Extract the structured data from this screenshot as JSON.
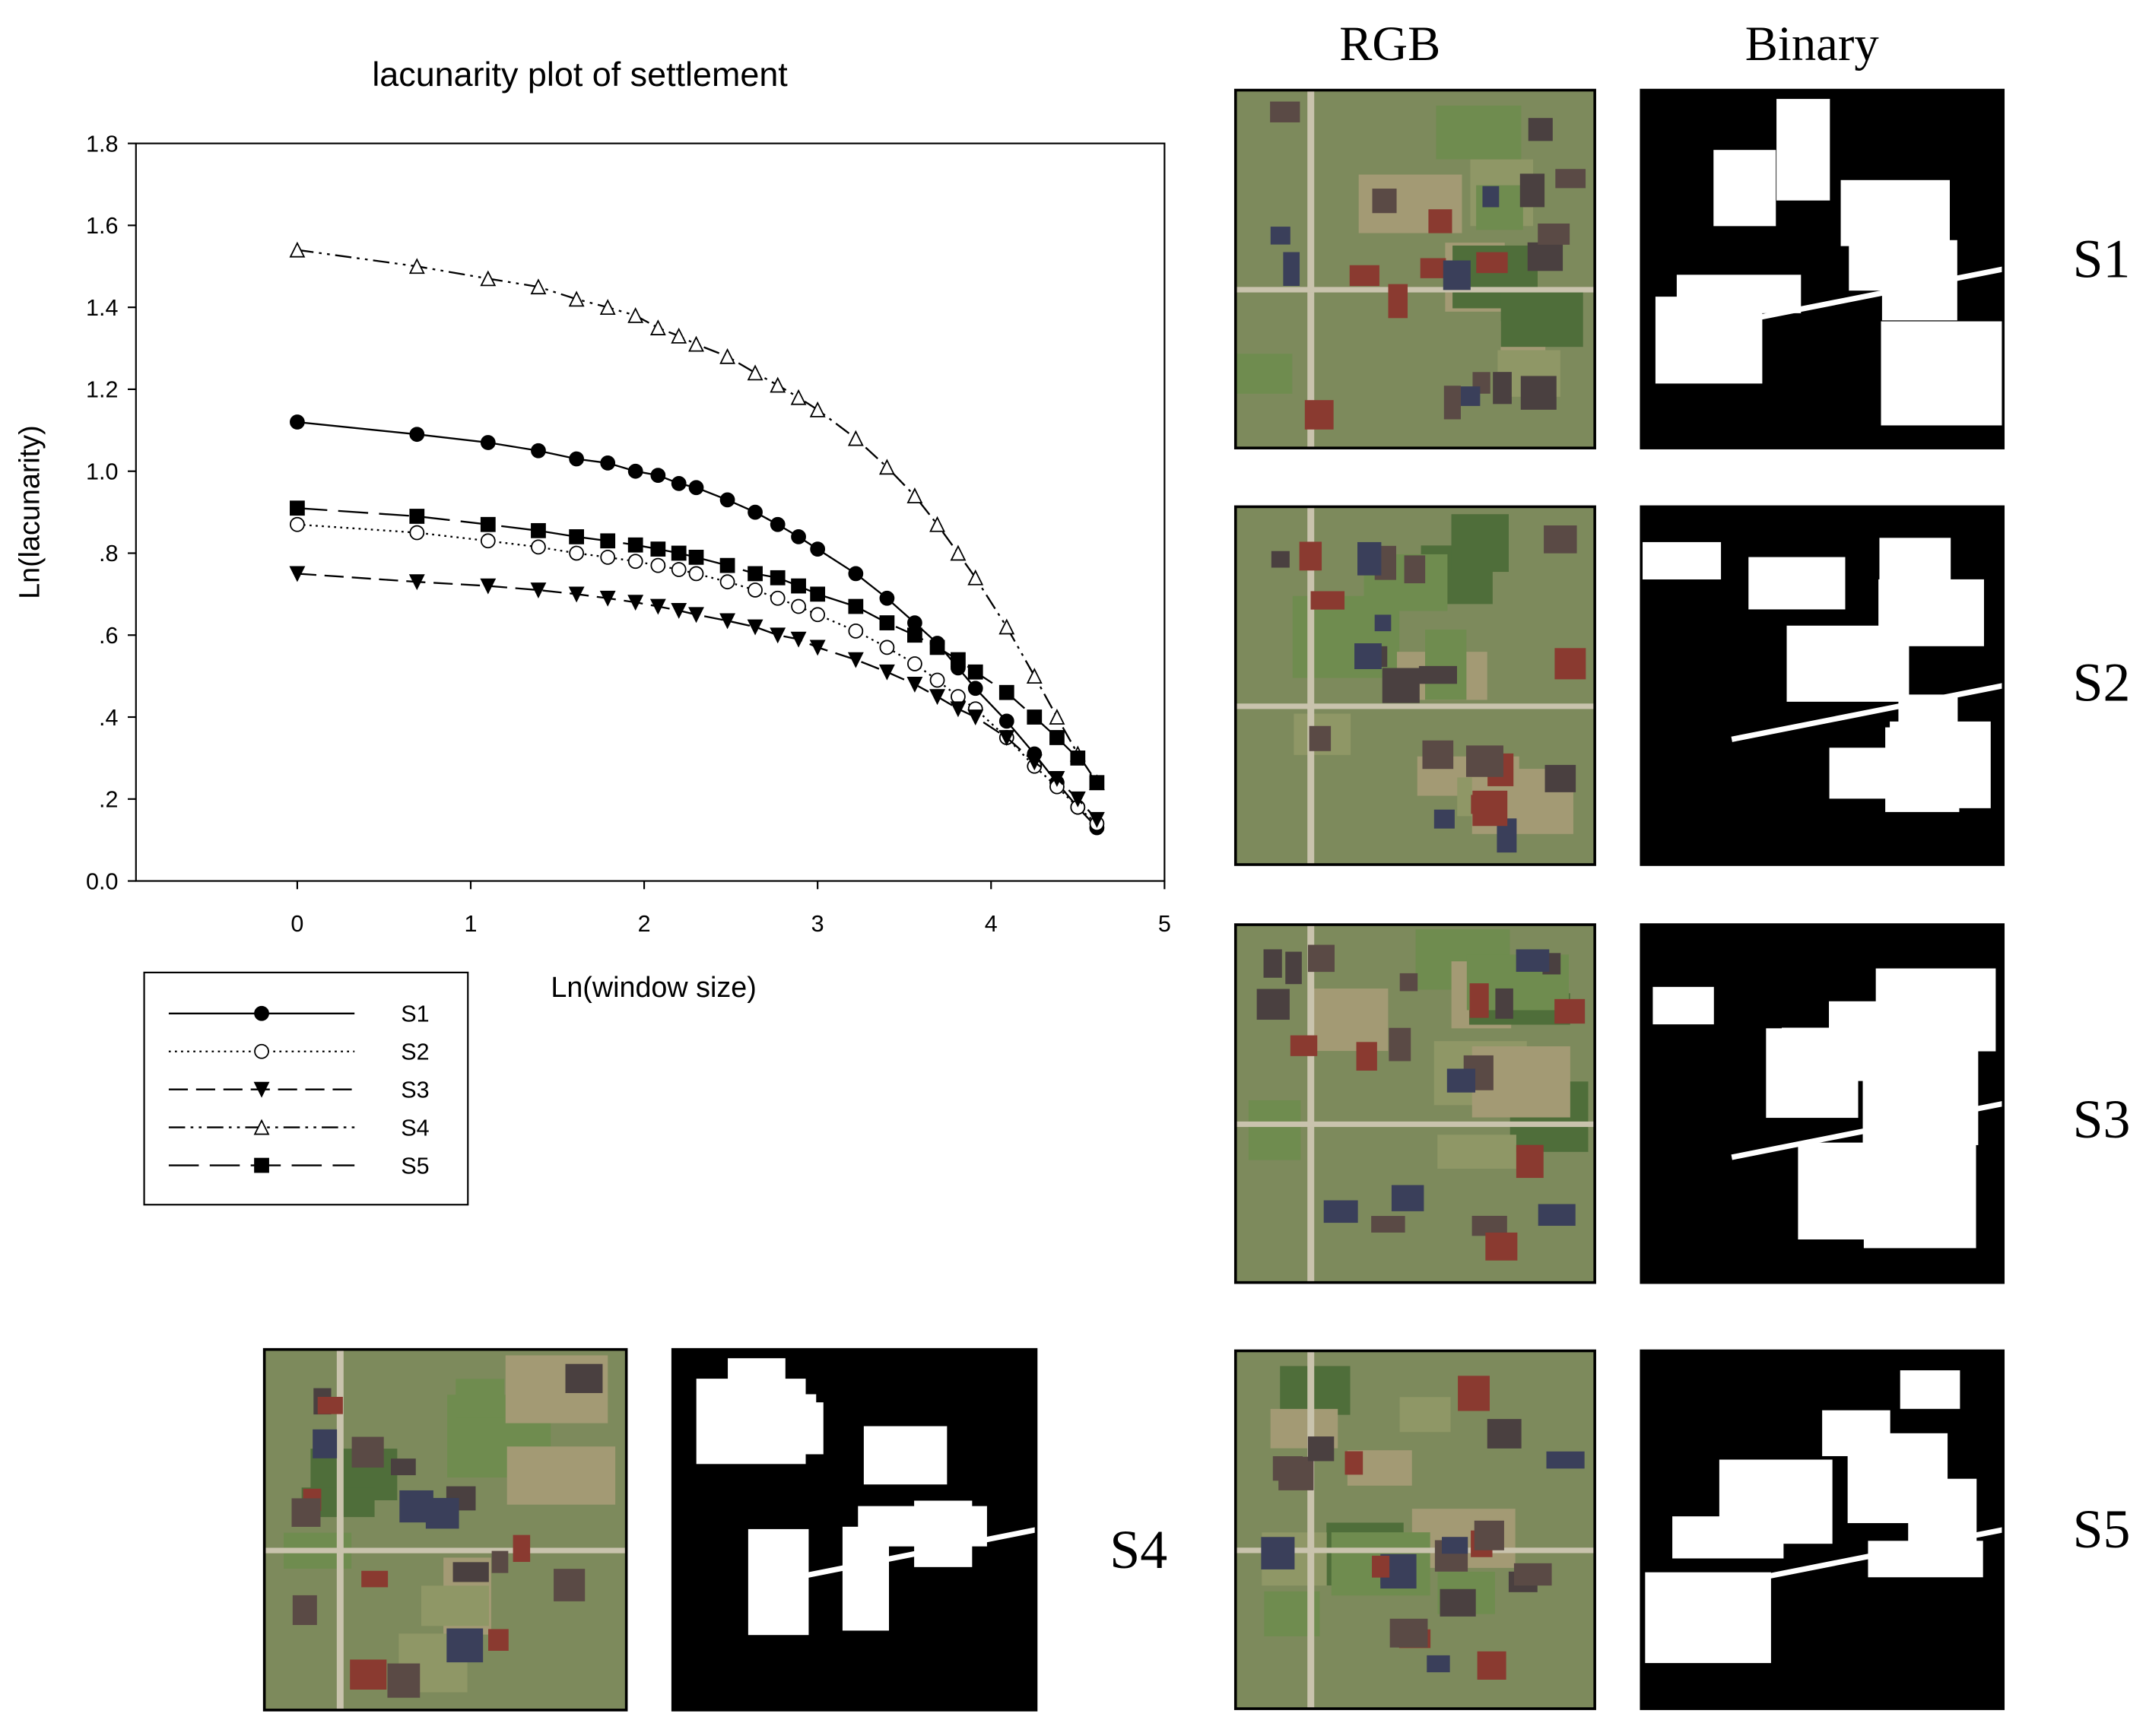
{
  "chart_data": {
    "type": "line",
    "title": "lacunarity plot of settlement",
    "x_label": "Ln(window size)",
    "y_label": "Ln(lacunarity)",
    "x": [
      0,
      0.69,
      1.1,
      1.39,
      1.61,
      1.79,
      1.95,
      2.08,
      2.2,
      2.3,
      2.48,
      2.64,
      2.77,
      2.89,
      3.0,
      3.22,
      3.4,
      3.56,
      3.69,
      3.81,
      3.91,
      4.09,
      4.25,
      4.38,
      4.5,
      4.61
    ],
    "series": [
      {
        "name": "S1",
        "color": "#000000",
        "line_style": "solid",
        "marker": "circle-filled",
        "values": [
          1.12,
          1.09,
          1.07,
          1.05,
          1.03,
          1.02,
          1.0,
          0.99,
          0.97,
          0.96,
          0.93,
          0.9,
          0.87,
          0.84,
          0.81,
          0.75,
          0.69,
          0.63,
          0.58,
          0.52,
          0.47,
          0.39,
          0.31,
          0.24,
          0.18,
          0.13
        ]
      },
      {
        "name": "S2",
        "color": "#000000",
        "line_style": "dotted",
        "marker": "circle-open",
        "values": [
          0.87,
          0.85,
          0.83,
          0.815,
          0.8,
          0.79,
          0.78,
          0.77,
          0.76,
          0.75,
          0.73,
          0.71,
          0.69,
          0.67,
          0.65,
          0.61,
          0.57,
          0.53,
          0.49,
          0.45,
          0.42,
          0.35,
          0.28,
          0.23,
          0.18,
          0.14
        ]
      },
      {
        "name": "S3",
        "color": "#000000",
        "line_style": "dashed",
        "marker": "triangle-down-filled",
        "values": [
          0.75,
          0.73,
          0.72,
          0.71,
          0.7,
          0.69,
          0.68,
          0.67,
          0.66,
          0.65,
          0.635,
          0.62,
          0.6,
          0.59,
          0.57,
          0.54,
          0.51,
          0.48,
          0.45,
          0.42,
          0.4,
          0.35,
          0.29,
          0.25,
          0.2,
          0.15
        ]
      },
      {
        "name": "S4",
        "color": "#000000",
        "line_style": "dash-dot-dot",
        "marker": "triangle-up-open",
        "values": [
          1.54,
          1.5,
          1.47,
          1.45,
          1.42,
          1.4,
          1.38,
          1.35,
          1.33,
          1.31,
          1.28,
          1.24,
          1.21,
          1.18,
          1.15,
          1.08,
          1.01,
          0.94,
          0.87,
          0.8,
          0.74,
          0.62,
          0.5,
          0.4,
          0.31,
          0.24
        ]
      },
      {
        "name": "S5",
        "color": "#000000",
        "line_style": "long-dash",
        "marker": "square-filled",
        "values": [
          0.91,
          0.89,
          0.87,
          0.855,
          0.84,
          0.83,
          0.82,
          0.81,
          0.8,
          0.79,
          0.77,
          0.75,
          0.74,
          0.72,
          0.7,
          0.67,
          0.63,
          0.6,
          0.57,
          0.54,
          0.51,
          0.46,
          0.4,
          0.35,
          0.3,
          0.24
        ]
      }
    ],
    "xlim": [
      -0.93,
      5
    ],
    "xticks": [
      0,
      1,
      2,
      3,
      4,
      5
    ],
    "ylim": [
      0,
      1.8
    ],
    "yticks": [
      {
        "value": 0,
        "label": "0.0"
      },
      {
        "value": 0.2,
        "label": ".2"
      },
      {
        "value": 0.4,
        "label": ".4"
      },
      {
        "value": 0.6,
        "label": ".6"
      },
      {
        "value": 0.8,
        "label": ".8"
      },
      {
        "value": 1.0,
        "label": "1.0"
      },
      1.2,
      1.4,
      1.6,
      1.8
    ],
    "grid": false,
    "legend": "below-left"
  },
  "panels": {
    "columns": [
      "RGB",
      "Binary"
    ],
    "labels": [
      "S1",
      "S2",
      "S3",
      "S4",
      "S5"
    ]
  }
}
